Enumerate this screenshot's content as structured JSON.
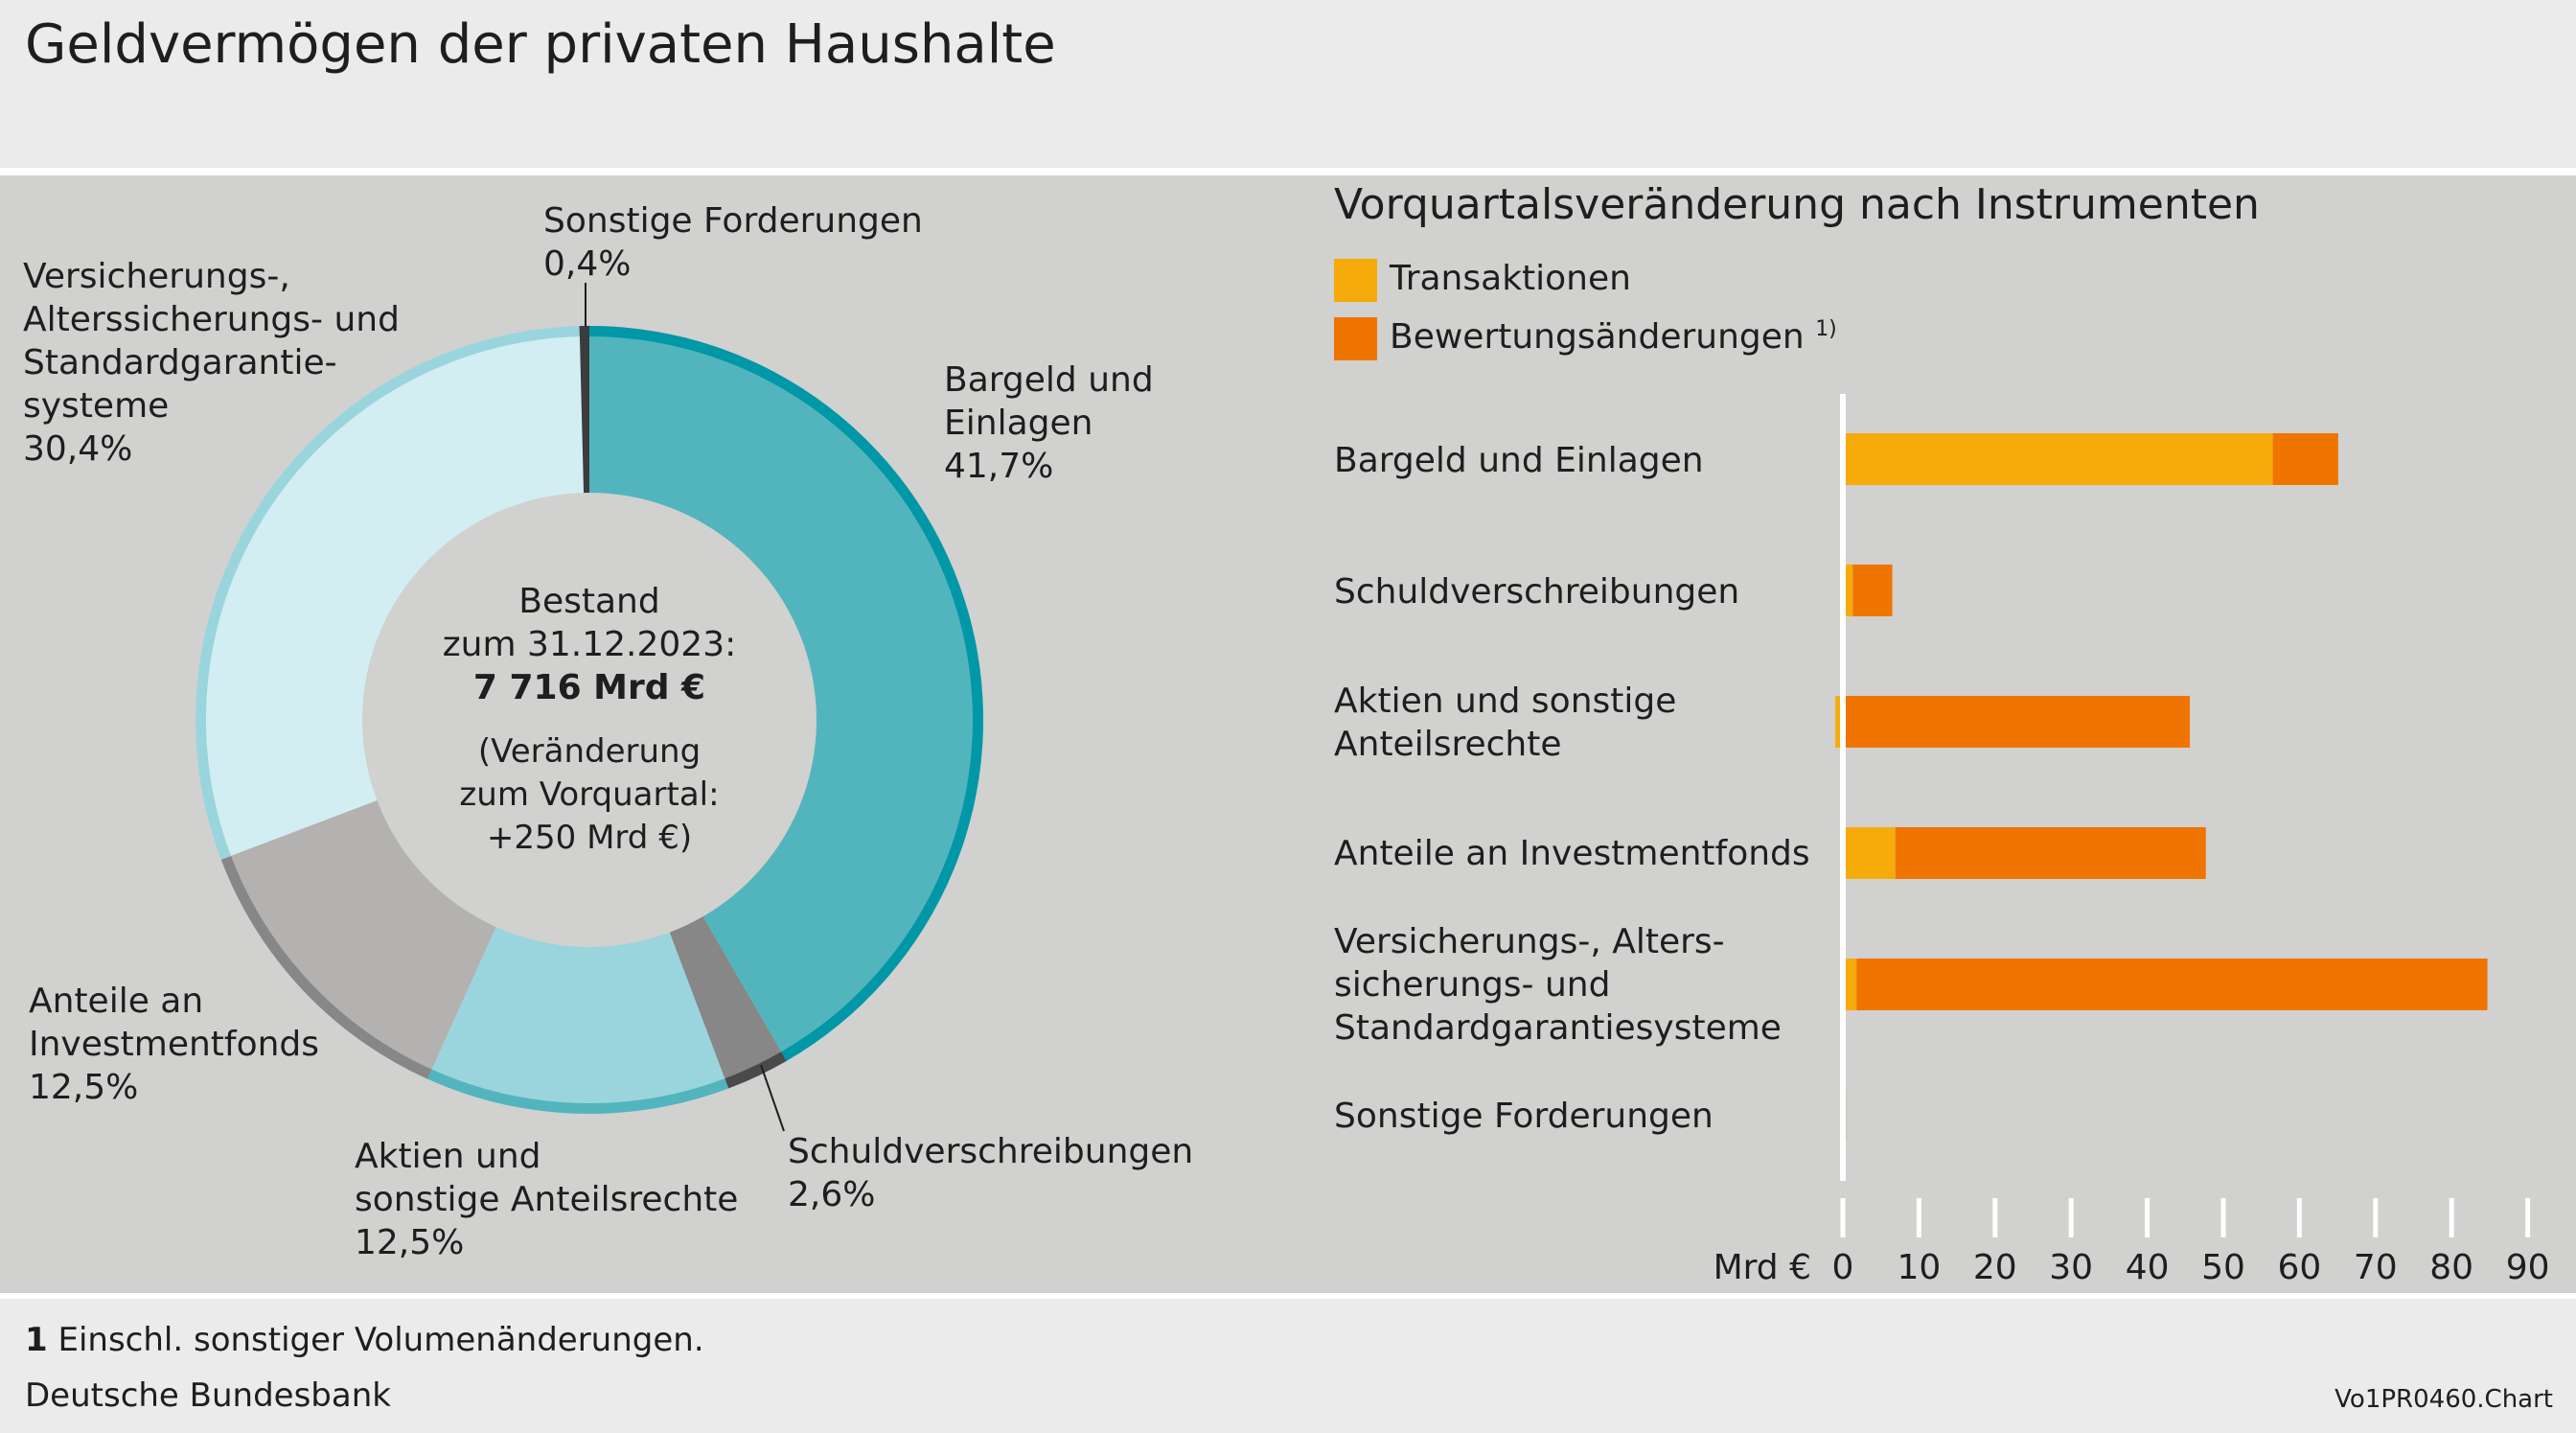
{
  "title": "Geldvermögen der privaten Haushalte",
  "colors": {
    "transaktionen": "#f6ab0a",
    "bewertung": "#ef7400",
    "panel": "#d1d1cf"
  },
  "chart_data": [
    {
      "type": "pie",
      "variant": "donut",
      "center_text": {
        "line1": "Bestand",
        "line2": "zum 31.12.2023:",
        "line3": "7 716 Mrd €",
        "line4": "(Veränderung",
        "line5": "zum Vorquartal:",
        "line6": "+250 Mrd €)"
      },
      "slices": [
        {
          "label_lines": [
            "Bargeld und",
            "Einlagen"
          ],
          "pct_label": "41,7%",
          "value": 41.7,
          "fill": "#52b5bd",
          "ring": "#0097a7"
        },
        {
          "label_lines": [
            "Schuldverschreibungen"
          ],
          "pct_label": "2,6%",
          "value": 2.6,
          "fill": "#878787",
          "ring": "#4a4a4a"
        },
        {
          "label_lines": [
            "Aktien und",
            "sonstige Anteilsrechte"
          ],
          "pct_label": "12,5%",
          "value": 12.5,
          "fill": "#9ad5dd",
          "ring": "#52b5bd"
        },
        {
          "label_lines": [
            "Anteile an",
            "Investmentfonds"
          ],
          "pct_label": "12,5%",
          "value": 12.5,
          "fill": "#b3b2b1",
          "ring": "#878787"
        },
        {
          "label_lines": [
            "Versicherungs-,",
            "Alterssicherungs- und",
            "Standardgarantie-",
            "systeme"
          ],
          "pct_label": "30,4%",
          "value": 30.4,
          "fill": "#d2eef2",
          "ring": "#9ad5dd"
        },
        {
          "label_lines": [
            "Sonstige Forderungen"
          ],
          "pct_label": "0,4%",
          "value": 0.4,
          "fill": "#3c3c3c",
          "ring": "#3c3c3c"
        }
      ]
    },
    {
      "type": "bar",
      "orientation": "horizontal",
      "stacked": true,
      "title": "Vorquartalsveränderung nach Instrumenten",
      "legend": {
        "transaktionen": "Transaktionen",
        "bewertung": "Bewertungsänderungen",
        "bewertung_sup": "1)",
        "placement": "top-left"
      },
      "categories": [
        [
          "Bargeld und Einlagen"
        ],
        [
          "Schuldverschreibungen"
        ],
        [
          "Aktien und sonstige",
          "Anteilsrechte"
        ],
        [
          "Anteile an Investmentfonds"
        ],
        [
          "Versicherungs-, Alters-",
          "sicherungs- und",
          "Standardgarantiesysteme"
        ],
        [
          "Sonstige Forderungen"
        ]
      ],
      "series": [
        {
          "name": "Transaktionen",
          "values": [
            56.5,
            1.3,
            -1.0,
            6.9,
            1.8,
            0.0
          ]
        },
        {
          "name": "Bewertungsänderungen",
          "values": [
            8.6,
            5.2,
            45.6,
            40.8,
            82.9,
            0.4
          ]
        }
      ],
      "xlabel": "Mrd €",
      "xlim": [
        0,
        90
      ],
      "xticks": [
        "0",
        "10",
        "20",
        "30",
        "40",
        "50",
        "60",
        "70",
        "80",
        "90"
      ],
      "grid": false
    }
  ],
  "footer": {
    "note_num": "1",
    "note_text": " Einschl. sonstiger Volumenänderungen.",
    "source": "Deutsche Bundesbank",
    "code": "Vo1PR0460.Chart"
  }
}
